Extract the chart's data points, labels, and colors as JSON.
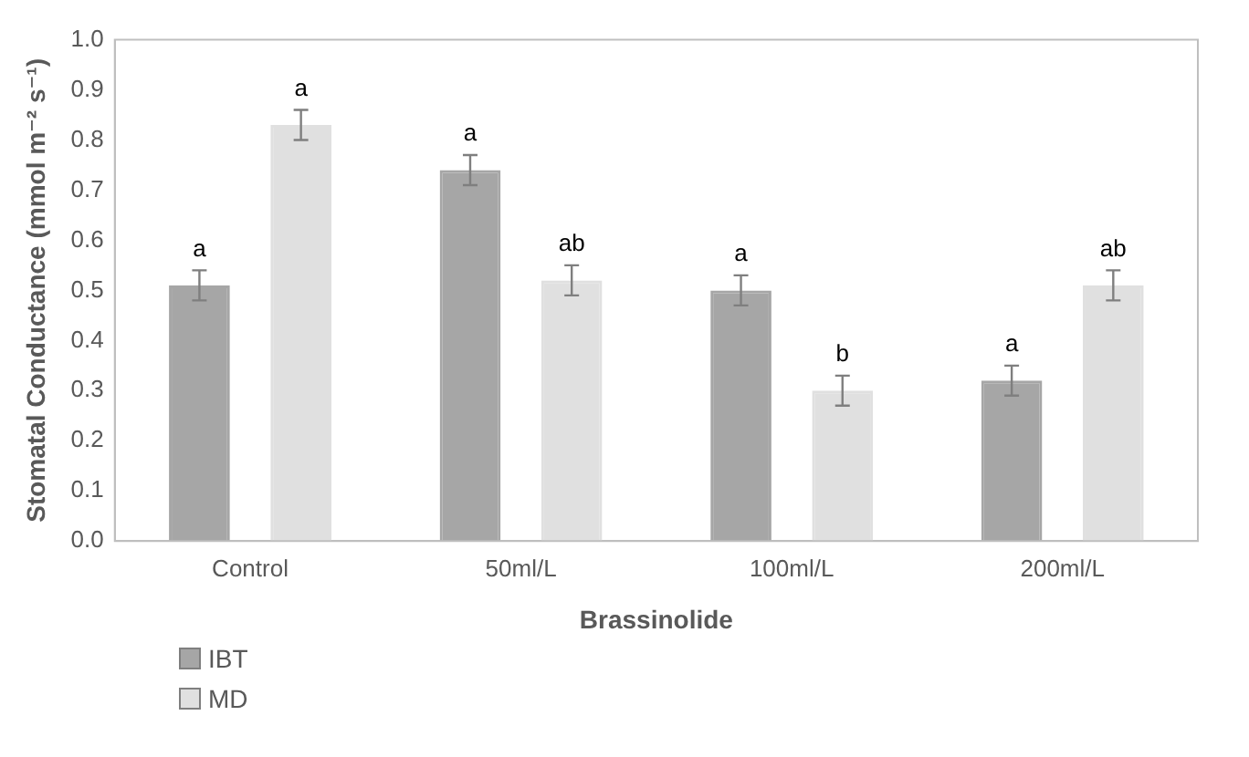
{
  "chart_data": {
    "type": "bar",
    "xlabel": "Brassinolide",
    "ylabel": "Stomatal Conductance (mmol m⁻² s⁻¹)",
    "categories": [
      "Control",
      "50ml/L",
      "100ml/L",
      "200ml/L"
    ],
    "series": [
      {
        "name": "IBT",
        "color": "#a6a6a6",
        "values": [
          0.51,
          0.74,
          0.5,
          0.32
        ],
        "errors": [
          0.03,
          0.03,
          0.03,
          0.03
        ],
        "value_labels": [
          "a",
          "a",
          "a",
          "a"
        ]
      },
      {
        "name": "MD",
        "color": "#e0e0e0",
        "values": [
          0.83,
          0.52,
          0.3,
          0.51
        ],
        "errors": [
          0.03,
          0.03,
          0.03,
          0.03
        ],
        "value_labels": [
          "a",
          "ab",
          "b",
          "ab"
        ]
      }
    ],
    "ylim": [
      0,
      1
    ],
    "yticks": [
      {
        "value": 0,
        "label": "0.0"
      },
      0.1,
      0.2,
      0.3,
      0.4,
      0.5,
      0.6,
      0.7,
      0.8,
      0.9,
      {
        "value": 1,
        "label": "1.0"
      }
    ],
    "grid": false,
    "legend": "bottom left"
  }
}
